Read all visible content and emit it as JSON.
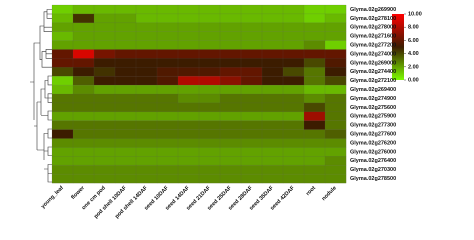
{
  "chart_data": {
    "type": "heatmap",
    "categories": [
      "young_leaf",
      "flower",
      "one cm pod",
      "pod shell 10DAF",
      "pod shell 14DAF",
      "seed 10DAF",
      "seed 14DAF",
      "seed 21DAF",
      "seed 25DAF",
      "seed 28DAF",
      "seed 35DAF",
      "seed 42DAF",
      "root",
      "nodule"
    ],
    "rows": [
      "Glyma.02g269900",
      "Glyma.02g278100",
      "Glyma.02g278000",
      "Glyma.02g271600",
      "Glyma.02g277200",
      "Glyma.02g274000",
      "Glyma.02g269000",
      "Glyma.02g274400",
      "Glyma.02g272100",
      "Glyma.02g269400",
      "Glyma.02g274900",
      "Glyma.02g275600",
      "Glyma.02g275900",
      "Glyma.02g277300",
      "Glyma.02g277600",
      "Glyma.02g276200",
      "Glyma.02g276000",
      "Glyma.02g276400",
      "Glyma.02g270300",
      "Glyma.02g278500"
    ],
    "values": [
      [
        1,
        1.5,
        1.5,
        1.5,
        1.5,
        1.5,
        1.5,
        1.5,
        1.5,
        1.5,
        1.5,
        1.5,
        1,
        1
      ],
      [
        1.5,
        4.5,
        2,
        2,
        1.5,
        1.5,
        1.5,
        1.5,
        1.5,
        1.5,
        1.5,
        1.5,
        1,
        1.5
      ],
      [
        2,
        2,
        2,
        2,
        2,
        2,
        2,
        2,
        2,
        2,
        2,
        2,
        2,
        2
      ],
      [
        1.5,
        2,
        2,
        2,
        2,
        2,
        2,
        2,
        2,
        2,
        2,
        2,
        2,
        2
      ],
      [
        2,
        2,
        2,
        2,
        2,
        2,
        2,
        2,
        2,
        2,
        2,
        2,
        2.5,
        1
      ],
      [
        6,
        9,
        6.5,
        6,
        6,
        6,
        6,
        6,
        6,
        6,
        6,
        6,
        6,
        6
      ],
      [
        6,
        6,
        5,
        5,
        5,
        5,
        5,
        5,
        5,
        5,
        5,
        5,
        4,
        5.5
      ],
      [
        4,
        5,
        4.5,
        5,
        5,
        5.5,
        5.5,
        5.5,
        6,
        6,
        5,
        4,
        3,
        5
      ],
      [
        1,
        3.5,
        5,
        5,
        5,
        5.5,
        8,
        8,
        7,
        6,
        5,
        5,
        3,
        4
      ],
      [
        1.5,
        2.5,
        2,
        2,
        2,
        2,
        2,
        2,
        2,
        2,
        2,
        2,
        1.5,
        1.5
      ],
      [
        3,
        3,
        3,
        3,
        3,
        3,
        2.5,
        2.5,
        3,
        3,
        3,
        3,
        2.5,
        3
      ],
      [
        3,
        3,
        3,
        3,
        3,
        3,
        3,
        3,
        3,
        3,
        3,
        3,
        4,
        3
      ],
      [
        2,
        2,
        2,
        2,
        2,
        2,
        2,
        2,
        2,
        2,
        2,
        2,
        7.5,
        3
      ],
      [
        3,
        3,
        3,
        3,
        3,
        3,
        3,
        3,
        3,
        3,
        3,
        3,
        5,
        3
      ],
      [
        5,
        3,
        3,
        3,
        3,
        3,
        3,
        3,
        3,
        3,
        3,
        3,
        3,
        3.5
      ],
      [
        2.5,
        2.5,
        2.5,
        2.5,
        2.5,
        2.5,
        2.5,
        2.5,
        2.5,
        2.5,
        2.5,
        2.5,
        2.5,
        2.5
      ],
      [
        2,
        2,
        2,
        2,
        2,
        2,
        2,
        2,
        2,
        2,
        2,
        2,
        2,
        2
      ],
      [
        2,
        2,
        2,
        2,
        2,
        2,
        2,
        2,
        2,
        2,
        2,
        2,
        2,
        2.5
      ],
      [
        2.5,
        2.5,
        2.5,
        2.5,
        2.5,
        2.5,
        2.5,
        2.5,
        2.5,
        2.5,
        2.5,
        2.5,
        2.5,
        2.5
      ],
      [
        2.5,
        2.5,
        2.5,
        2.5,
        2.5,
        2.5,
        2.5,
        2.5,
        2.5,
        2.5,
        2.5,
        2.5,
        2.5,
        2.5
      ]
    ],
    "colors": [
      "#7cfc00",
      "#3c1c00",
      "#ff0000"
    ],
    "clim": [
      0,
      10
    ],
    "cticks": [
      {
        "value": 10,
        "label": "10.00"
      },
      {
        "value": 8,
        "label": "8.00"
      },
      {
        "value": 6,
        "label": "6.00"
      },
      {
        "value": 4,
        "label": "4.00"
      },
      {
        "value": 2,
        "label": "2.00"
      },
      {
        "value": 0,
        "label": "0.00"
      }
    ]
  }
}
